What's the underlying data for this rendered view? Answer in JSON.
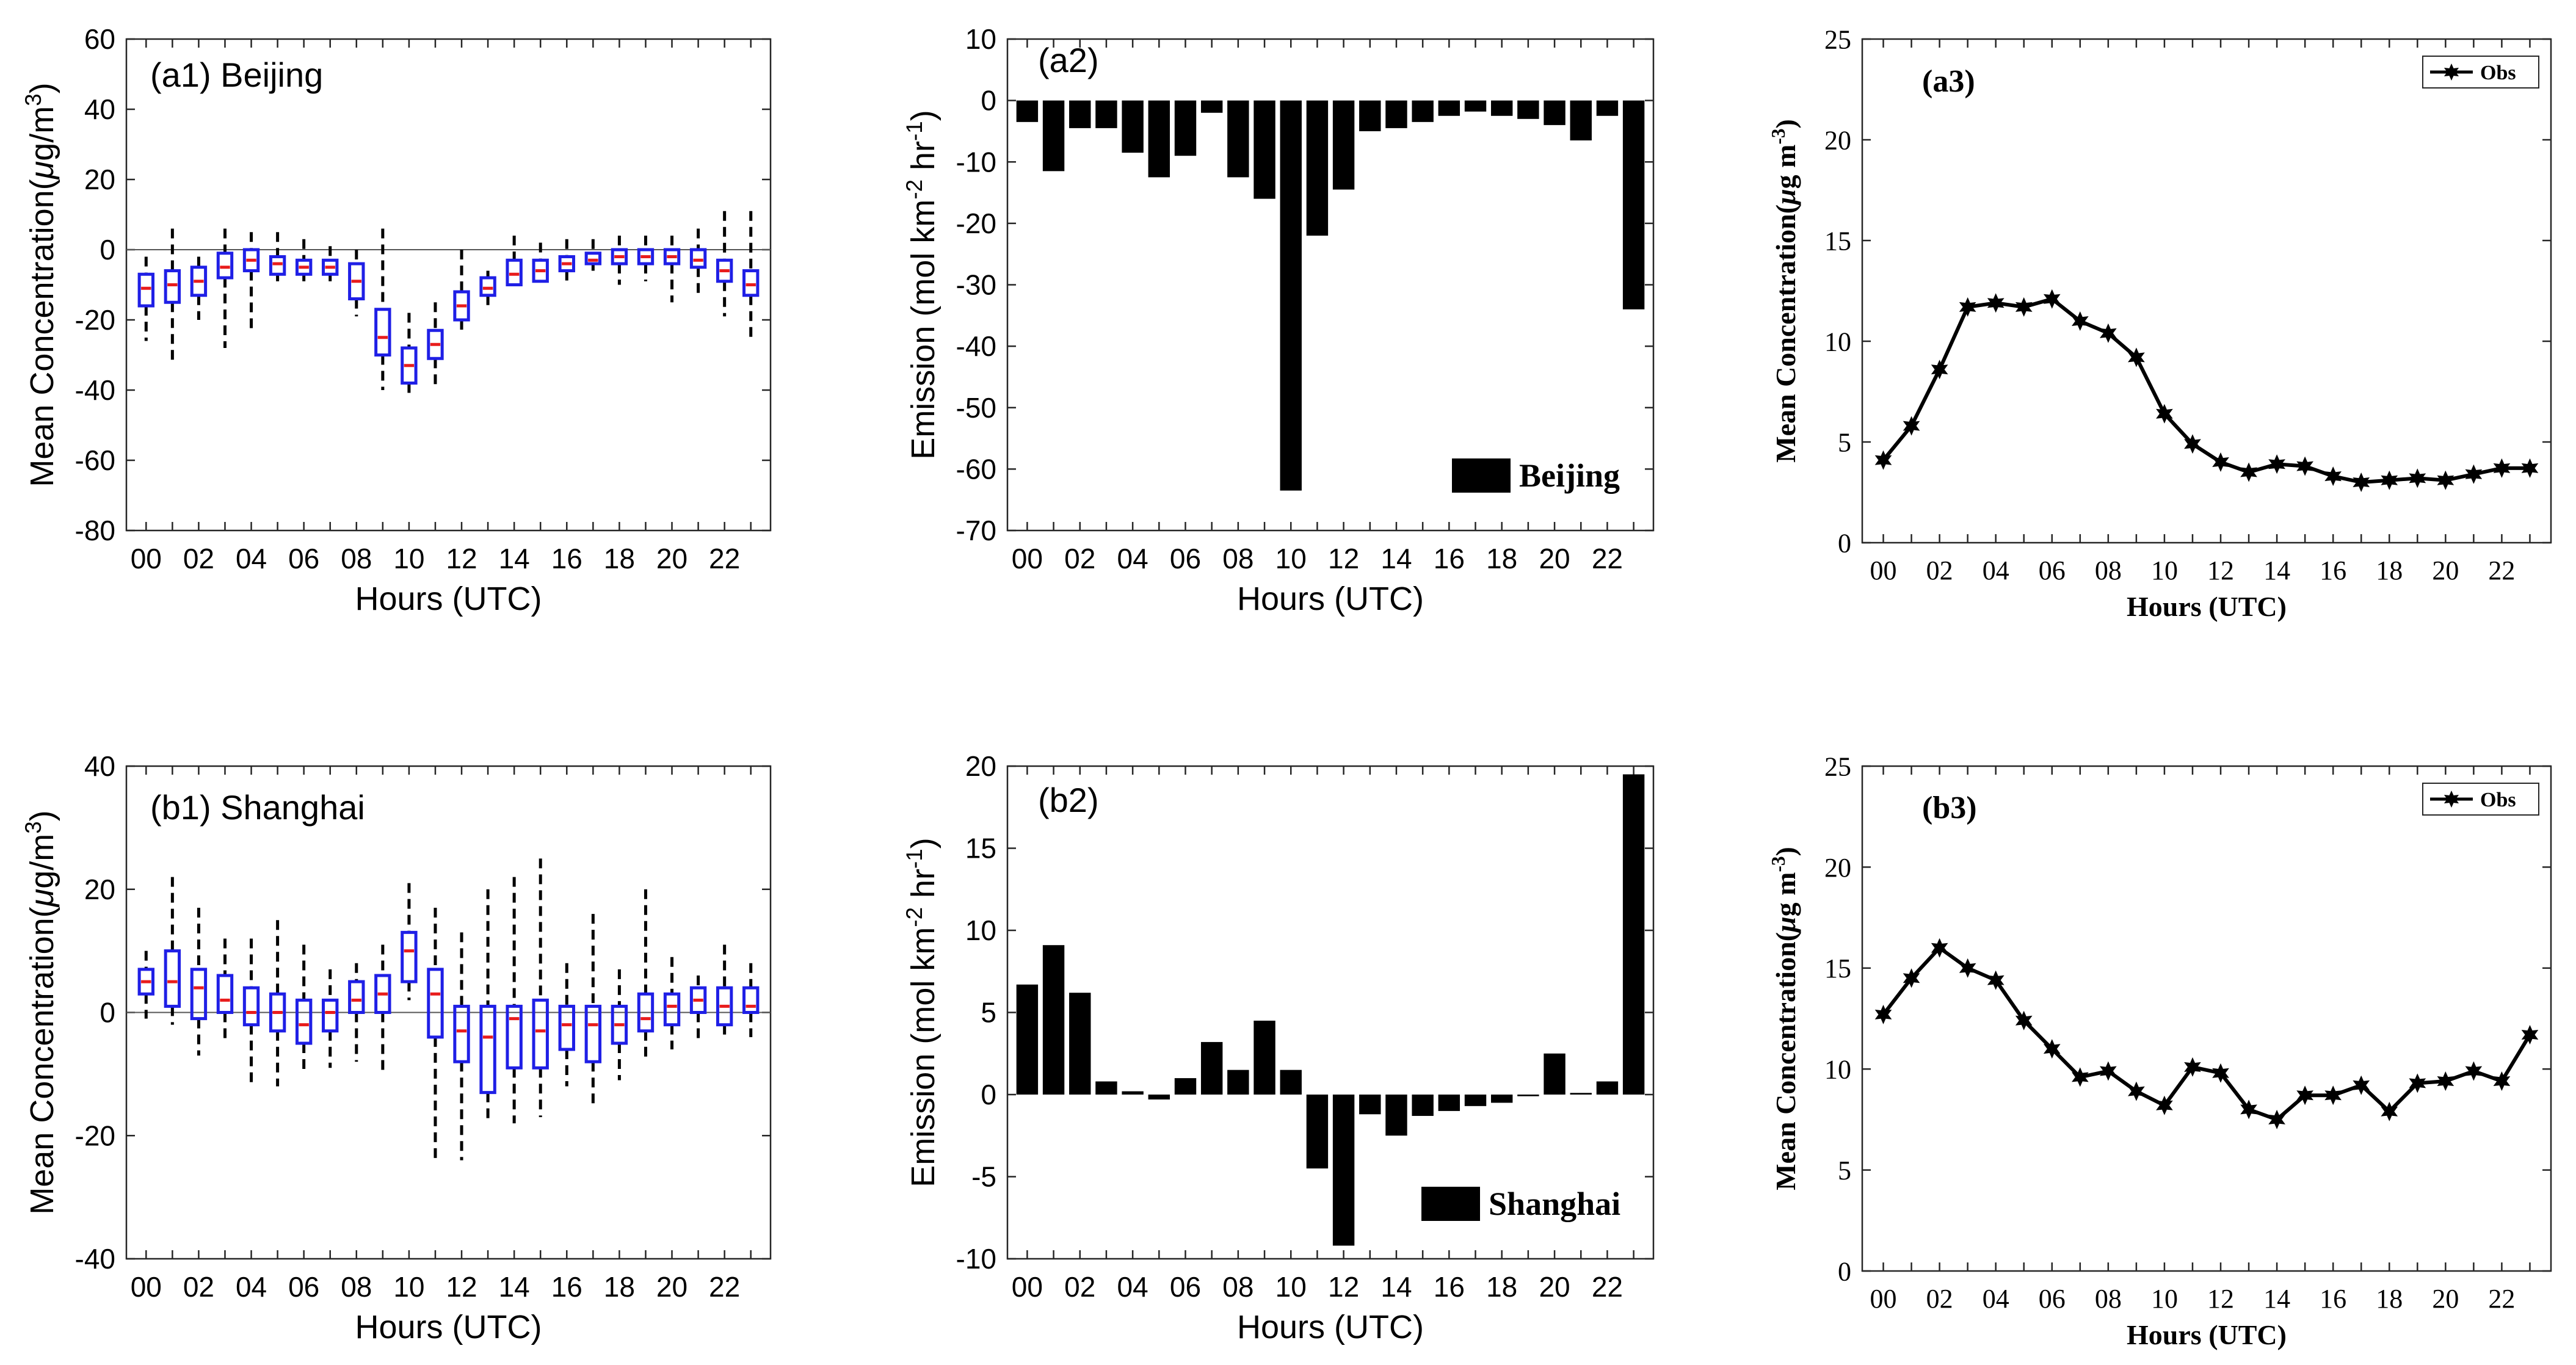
{
  "chart_data": [
    {
      "id": "a1",
      "type": "box",
      "panel_label": "(a1) Beijing",
      "title": "",
      "xlabel": "Hours (UTC)",
      "ylabel": "Mean Concentration(μg/m3)",
      "ylabel_parts": [
        "Mean Concentration(",
        "μ",
        "g/m",
        "3",
        ")"
      ],
      "ylim": [
        -80,
        60
      ],
      "yticks": [
        -80,
        -60,
        -40,
        -20,
        0,
        20,
        40,
        60
      ],
      "xtick_labels": [
        "00",
        "02",
        "04",
        "06",
        "08",
        "10",
        "12",
        "14",
        "16",
        "18",
        "20",
        "22"
      ],
      "hours": [
        0,
        1,
        2,
        3,
        4,
        5,
        6,
        7,
        8,
        9,
        10,
        11,
        12,
        13,
        14,
        15,
        16,
        17,
        18,
        19,
        20,
        21,
        22,
        23
      ],
      "q1": [
        -16,
        -15,
        -13,
        -8,
        -6,
        -7,
        -7,
        -7,
        -14,
        -30,
        -38,
        -31,
        -20,
        -13,
        -10,
        -9,
        -6,
        -4,
        -4,
        -4,
        -4,
        -5,
        -9,
        -13
      ],
      "median": [
        -11,
        -10,
        -9,
        -5,
        -3,
        -4,
        -5,
        -5,
        -9,
        -25,
        -33,
        -27,
        -16,
        -11,
        -7,
        -6,
        -4,
        -3,
        -2,
        -2,
        -2,
        -3,
        -6,
        -10
      ],
      "q3": [
        -7,
        -6,
        -5,
        -1,
        0,
        -2,
        -3,
        -3,
        -4,
        -17,
        -28,
        -23,
        -12,
        -8,
        -3,
        -3,
        -2,
        -1,
        0,
        0,
        0,
        0,
        -3,
        -6
      ],
      "whisker_low": [
        -26,
        -33,
        -20,
        -28,
        -23,
        -9,
        -9,
        -9,
        -19,
        -40,
        -41,
        -39,
        -23,
        -17,
        -10,
        -9,
        -9,
        -6,
        -10,
        -9,
        -15,
        -13,
        -19,
        -25
      ],
      "whisker_high": [
        -2,
        6,
        -2,
        6,
        5,
        5,
        3,
        1,
        0,
        6,
        -18,
        -15,
        0,
        -6,
        4,
        2,
        3,
        3,
        4,
        4,
        4,
        6,
        11,
        11
      ]
    },
    {
      "id": "a2",
      "type": "bar",
      "panel_label": "(a2)",
      "title": "",
      "xlabel": "Hours (UTC)",
      "ylabel": "Emission (mol km-2 hr-1)",
      "ylabel_parts": [
        "Emission (mol km",
        "-2",
        " hr",
        "-1",
        ")"
      ],
      "ylim": [
        -70,
        10
      ],
      "yticks": [
        -70,
        -60,
        -50,
        -40,
        -30,
        -20,
        -10,
        0,
        10
      ],
      "legend": "Beijing",
      "legend_placement": "bottom-right",
      "xtick_labels": [
        "00",
        "02",
        "04",
        "06",
        "08",
        "10",
        "12",
        "14",
        "16",
        "18",
        "20",
        "22"
      ],
      "hours": [
        0,
        1,
        2,
        3,
        4,
        5,
        6,
        7,
        8,
        9,
        10,
        11,
        12,
        13,
        14,
        15,
        16,
        17,
        18,
        19,
        20,
        21,
        22,
        23
      ],
      "values": [
        -3.5,
        -11.5,
        -4.5,
        -4.5,
        -8.5,
        -12.5,
        -9,
        -2,
        -12.5,
        -16,
        -63.5,
        -22,
        -14.5,
        -5,
        -4.5,
        -3.5,
        -2.5,
        -1.8,
        -2.5,
        -3,
        -4,
        -6.5,
        -2.5,
        -34
      ]
    },
    {
      "id": "a3",
      "type": "line",
      "panel_label": "(a3)",
      "title": "",
      "xlabel": "Hours (UTC)",
      "ylabel": "Mean Concentration(μg m-3)",
      "ylabel_parts": [
        "Mean Concentration(",
        "μ",
        "g m",
        "-3",
        ")"
      ],
      "ylim": [
        0,
        25
      ],
      "yticks": [
        0,
        5,
        10,
        15,
        20,
        25
      ],
      "legend": "Obs",
      "legend_placement": "top-right",
      "xtick_labels": [
        "00",
        "02",
        "04",
        "06",
        "08",
        "10",
        "12",
        "14",
        "16",
        "18",
        "20",
        "22"
      ],
      "hours": [
        0,
        1,
        2,
        3,
        4,
        5,
        6,
        7,
        8,
        9,
        10,
        11,
        12,
        13,
        14,
        15,
        16,
        17,
        18,
        19,
        20,
        21,
        22,
        23
      ],
      "values": [
        4.1,
        5.8,
        8.6,
        11.7,
        11.9,
        11.7,
        12.1,
        11.0,
        10.4,
        9.2,
        6.4,
        4.9,
        4.0,
        3.5,
        3.9,
        3.8,
        3.3,
        3.0,
        3.1,
        3.2,
        3.1,
        3.4,
        3.7,
        3.7
      ]
    },
    {
      "id": "b1",
      "type": "box",
      "panel_label": "(b1) Shanghai",
      "title": "",
      "xlabel": "Hours (UTC)",
      "ylabel": "Mean Concentration(μg/m3)",
      "ylabel_parts": [
        "Mean Concentration(",
        "μ",
        "g/m",
        "3",
        ")"
      ],
      "ylim": [
        -40,
        40
      ],
      "yticks": [
        -40,
        -20,
        0,
        20,
        40
      ],
      "xtick_labels": [
        "00",
        "02",
        "04",
        "06",
        "08",
        "10",
        "12",
        "14",
        "16",
        "18",
        "20",
        "22"
      ],
      "hours": [
        0,
        1,
        2,
        3,
        4,
        5,
        6,
        7,
        8,
        9,
        10,
        11,
        12,
        13,
        14,
        15,
        16,
        17,
        18,
        19,
        20,
        21,
        22,
        23
      ],
      "q1": [
        3,
        1,
        -1,
        0,
        -2,
        -3,
        -5,
        -3,
        0,
        0,
        5,
        -4,
        -8,
        -13,
        -9,
        -9,
        -6,
        -8,
        -5,
        -3,
        -2,
        0,
        -2,
        0
      ],
      "median": [
        5,
        5,
        4,
        2,
        0,
        0,
        -2,
        0,
        2,
        3,
        10,
        3,
        -3,
        -4,
        -1,
        -3,
        -2,
        -2,
        -2,
        -1,
        1,
        2,
        1,
        1
      ],
      "q3": [
        7,
        10,
        7,
        6,
        4,
        3,
        2,
        2,
        5,
        6,
        13,
        7,
        1,
        1,
        1,
        2,
        1,
        1,
        1,
        3,
        3,
        4,
        4,
        4
      ],
      "whisker_low": [
        -1,
        -2,
        -7,
        -5,
        -12,
        -12,
        -10,
        -9,
        -8,
        -10,
        2,
        -24,
        -24,
        -18,
        -18,
        -17,
        -12,
        -15,
        -11,
        -8,
        -6,
        -5,
        -4,
        -4
      ],
      "whisker_high": [
        10,
        22,
        17,
        12,
        12,
        15,
        11,
        7,
        8,
        11,
        21,
        17,
        13,
        20,
        22,
        25,
        8,
        16,
        7,
        20,
        9,
        6,
        11,
        8
      ]
    },
    {
      "id": "b2",
      "type": "bar",
      "panel_label": "(b2)",
      "title": "",
      "xlabel": "Hours (UTC)",
      "ylabel": "Emission (mol km-2 hr-1)",
      "ylabel_parts": [
        "Emission (mol km",
        "-2",
        " hr",
        "-1",
        ")"
      ],
      "ylim": [
        -10,
        20
      ],
      "yticks": [
        -10,
        -5,
        0,
        5,
        10,
        15,
        20
      ],
      "legend": "Shanghai",
      "legend_placement": "bottom-right",
      "xtick_labels": [
        "00",
        "02",
        "04",
        "06",
        "08",
        "10",
        "12",
        "14",
        "16",
        "18",
        "20",
        "22"
      ],
      "hours": [
        0,
        1,
        2,
        3,
        4,
        5,
        6,
        7,
        8,
        9,
        10,
        11,
        12,
        13,
        14,
        15,
        16,
        17,
        18,
        19,
        20,
        21,
        22,
        23
      ],
      "values": [
        6.7,
        9.1,
        6.2,
        0.8,
        0.2,
        -0.3,
        1.0,
        3.2,
        1.5,
        4.5,
        1.5,
        -4.5,
        -9.2,
        -1.2,
        -2.5,
        -1.3,
        -1.0,
        -0.7,
        -0.5,
        -0.1,
        2.5,
        0.1,
        0.8,
        19.5
      ]
    },
    {
      "id": "b3",
      "type": "line",
      "panel_label": "(b3)",
      "title": "",
      "xlabel": "Hours (UTC)",
      "ylabel": "Mean Concentration(μg m-3)",
      "ylabel_parts": [
        "Mean Concentration(",
        "μ",
        "g m",
        "-3",
        ")"
      ],
      "ylim": [
        0,
        25
      ],
      "yticks": [
        0,
        5,
        10,
        15,
        20,
        25
      ],
      "legend": "Obs",
      "legend_placement": "top-right",
      "xtick_labels": [
        "00",
        "02",
        "04",
        "06",
        "08",
        "10",
        "12",
        "14",
        "16",
        "18",
        "20",
        "22"
      ],
      "hours": [
        0,
        1,
        2,
        3,
        4,
        5,
        6,
        7,
        8,
        9,
        10,
        11,
        12,
        13,
        14,
        15,
        16,
        17,
        18,
        19,
        20,
        21,
        22,
        23
      ],
      "values": [
        12.7,
        14.5,
        16.0,
        15.0,
        14.4,
        12.4,
        11.0,
        9.6,
        9.9,
        8.9,
        8.2,
        10.1,
        9.8,
        8.0,
        7.5,
        8.7,
        8.7,
        9.2,
        7.9,
        9.3,
        9.4,
        9.9,
        9.4,
        11.7
      ]
    }
  ]
}
